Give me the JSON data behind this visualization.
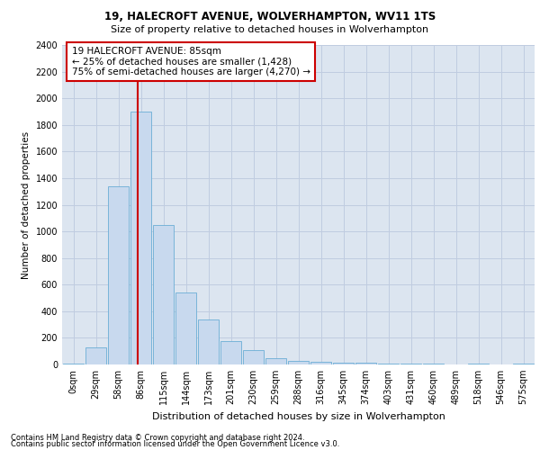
{
  "title1": "19, HALECROFT AVENUE, WOLVERHAMPTON, WV11 1TS",
  "title2": "Size of property relative to detached houses in Wolverhampton",
  "xlabel": "Distribution of detached houses by size in Wolverhampton",
  "ylabel": "Number of detached properties",
  "footer1": "Contains HM Land Registry data © Crown copyright and database right 2024.",
  "footer2": "Contains public sector information licensed under the Open Government Licence v3.0.",
  "annotation_line1": "19 HALECROFT AVENUE: 85sqm",
  "annotation_line2": "← 25% of detached houses are smaller (1,428)",
  "annotation_line3": "75% of semi-detached houses are larger (4,270) →",
  "bar_color": "#c8d9ee",
  "bar_edge_color": "#6baed6",
  "vline_color": "#cc0000",
  "annotation_box_edgecolor": "#cc0000",
  "grid_color": "#c0cce0",
  "bg_color": "#dce5f0",
  "categories": [
    "0sqm",
    "29sqm",
    "58sqm",
    "86sqm",
    "115sqm",
    "144sqm",
    "173sqm",
    "201sqm",
    "230sqm",
    "259sqm",
    "288sqm",
    "316sqm",
    "345sqm",
    "374sqm",
    "403sqm",
    "431sqm",
    "460sqm",
    "489sqm",
    "518sqm",
    "546sqm",
    "575sqm"
  ],
  "values": [
    10,
    130,
    1340,
    1900,
    1050,
    540,
    340,
    175,
    110,
    50,
    30,
    20,
    15,
    15,
    10,
    5,
    5,
    0,
    5,
    0,
    5
  ],
  "vline_x_index": 2.85,
  "ylim": [
    0,
    2400
  ],
  "yticks": [
    0,
    200,
    400,
    600,
    800,
    1000,
    1200,
    1400,
    1600,
    1800,
    2000,
    2200,
    2400
  ],
  "title1_fontsize": 8.5,
  "title2_fontsize": 8.0,
  "xlabel_fontsize": 8.0,
  "ylabel_fontsize": 7.5,
  "tick_fontsize": 7.0,
  "footer_fontsize": 6.0,
  "annotation_fontsize": 7.5
}
